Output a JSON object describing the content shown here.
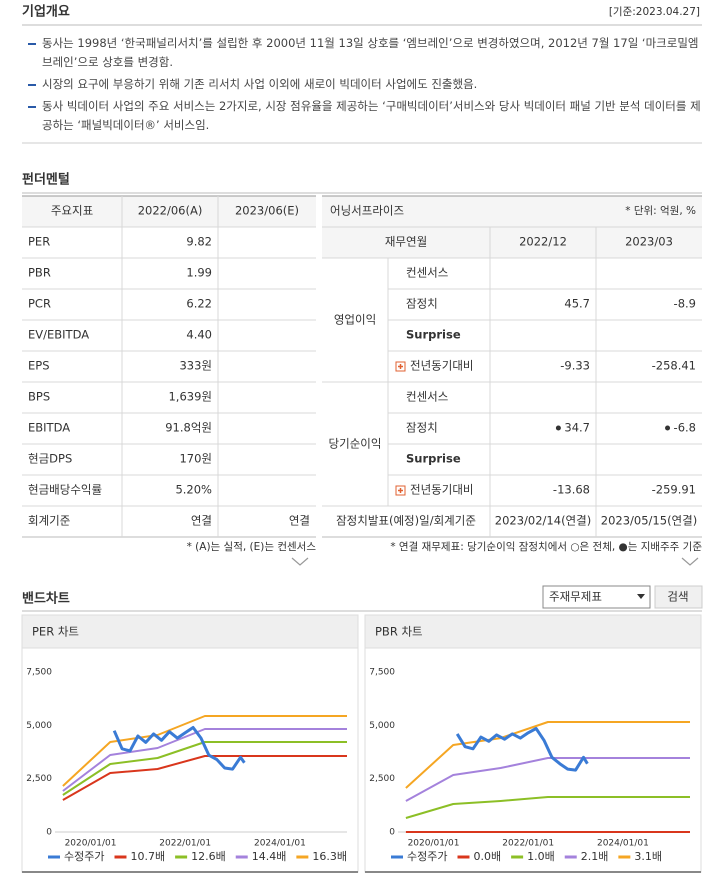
{
  "header": {
    "title": "기업개요",
    "date": "[기준:2023.04.27]"
  },
  "overview": [
    "동사는 1998년 ‘한국패널리서치’를 설립한 후 2000년 11월 13일 상호를 ‘엠브레인’으로 변경하였으며, 2012년 7월 17일 ‘마크로밀엠브레인’으로 상호를 변경함.",
    "시장의 요구에 부응하기 위해 기존 리서치 사업 이외에 새로이 빅데이터 사업에도 진출했음.",
    "동사 빅데이터 사업의 주요 서비스는 2가지로, 시장 점유율을 제공하는 ‘구매빅데이터’서비스와 당사 빅데이터 패널 기반 분석 데이터를 제공하는 ‘패널빅데이터®’ 서비스임."
  ],
  "fundamental": {
    "title": "펀더멘털",
    "indicators": {
      "headers": [
        "주요지표",
        "2022/06(A)",
        "2023/06(E)"
      ],
      "rows": [
        [
          "PER",
          "9.82",
          null
        ],
        [
          "PBR",
          "1.99",
          null
        ],
        [
          "PCR",
          "6.22",
          null
        ],
        [
          "EV/EBITDA",
          "4.40",
          null
        ],
        [
          "EPS",
          "333원",
          null
        ],
        [
          "BPS",
          "1,639원",
          null
        ],
        [
          "EBITDA",
          "91.8억원",
          null
        ],
        [
          "현금DPS",
          "170원",
          null
        ],
        [
          "현금배당수익률",
          "5.20%",
          null
        ],
        [
          "회계기준",
          "연결",
          "연결"
        ]
      ]
    },
    "earnings": {
      "title": "어닝서프라이즈",
      "unit": "* 단위: 억원, %",
      "headers": [
        "재무연월",
        "2022/12",
        "2023/03"
      ],
      "groups": [
        {
          "name": "영업이익",
          "rows": [
            [
              "컨센서스",
              null,
              null
            ],
            [
              "잠정치",
              "45.7",
              "-8.9"
            ],
            [
              "Surprise",
              null,
              null
            ],
            [
              "전년동기대비",
              "-9.33",
              "-258.41"
            ]
          ]
        },
        {
          "name": "당기순이익",
          "rows": [
            [
              "컨센서스",
              null,
              null
            ],
            [
              "잠정치",
              "34.7",
              "-6.8"
            ],
            [
              "Surprise",
              null,
              null
            ],
            [
              "전년동기대비",
              "-13.68",
              "-259.91"
            ]
          ]
        }
      ],
      "footer": [
        "잠정치발표(예정)일/회계기준",
        "2023/02/14(연결)",
        "2023/05/15(연결)"
      ]
    },
    "notes": [
      "* (A)는 실적, (E)는 컨센서스",
      "* 연결 재무제표: 당기순이익 잠정치에서 ○은 전체, ●는 지배주주 기준"
    ]
  },
  "band": {
    "title": "밴드차트",
    "select": "주재무제표",
    "button": "검색",
    "charts": [
      {
        "type": "line",
        "title": "PER 차트",
        "xlim": [
          "2019/04/01",
          "2025/06/01"
        ],
        "xticks": [
          "2020/01/01",
          "2022/01/01",
          "2024/01/01"
        ],
        "ylim": [
          0,
          7500
        ],
        "yticks": [
          0,
          {
            "value": 2500,
            "label": "2,500"
          },
          {
            "value": 5000,
            "label": "5,000"
          },
          {
            "value": 7500,
            "label": "7,500"
          }
        ],
        "series": [
          {
            "name": "수정주가",
            "color": "#3a7bd5",
            "x": [
              "2020/07/01",
              "2020/09/01",
              "2020/11/01",
              "2021/01/01",
              "2021/03/01",
              "2021/05/01",
              "2021/07/01",
              "2021/09/01",
              "2021/11/01",
              "2022/01/01",
              "2022/03/01",
              "2022/05/01",
              "2022/07/01",
              "2022/09/01",
              "2022/11/01",
              "2023/01/01",
              "2023/03/01",
              "2023/04/01"
            ],
            "values": [
              4750,
              3900,
              3800,
              4500,
              4200,
              4600,
              4300,
              4700,
              4400,
              4650,
              4900,
              4400,
              3600,
              3400,
              3000,
              2950,
              3500,
              3250
            ]
          },
          {
            "name": "10.7배",
            "color": "#d9361c",
            "x": [
              "2019/06/01",
              "2020/06/01",
              "2021/06/01",
              "2022/06/01",
              "2025/06/01"
            ],
            "values": [
              1500,
              2766,
              2953,
              3563,
              3563
            ]
          },
          {
            "name": "12.6배",
            "color": "#8cbf26",
            "x": [
              "2019/06/01",
              "2020/06/01",
              "2021/06/01",
              "2022/06/01",
              "2025/06/01"
            ],
            "values": [
              1735,
              3188,
              3469,
              4219,
              4219
            ]
          },
          {
            "name": "14.4배",
            "color": "#a482dc",
            "x": [
              "2019/06/01",
              "2020/06/01",
              "2021/06/01",
              "2022/06/01",
              "2025/06/01"
            ],
            "values": [
              1920,
              3610,
              3938,
              4828,
              4828
            ]
          },
          {
            "name": "16.3배",
            "color": "#f5a623",
            "x": [
              "2019/06/01",
              "2020/06/01",
              "2021/06/01",
              "2022/06/01",
              "2025/06/01"
            ],
            "values": [
              2156,
              4219,
              4547,
              5437,
              5437
            ]
          }
        ]
      },
      {
        "type": "line",
        "title": "PBR 차트",
        "xlim": [
          "2019/04/01",
          "2025/06/01"
        ],
        "xticks": [
          "2020/01/01",
          "2022/01/01",
          "2024/01/01"
        ],
        "ylim": [
          0,
          7500
        ],
        "yticks": [
          0,
          {
            "value": 2500,
            "label": "2,500"
          },
          {
            "value": 5000,
            "label": "5,000"
          },
          {
            "value": 7500,
            "label": "7,500"
          }
        ],
        "series": [
          {
            "name": "수정주가",
            "color": "#3a7bd5",
            "x": [
              "2020/07/01",
              "2020/09/01",
              "2020/11/01",
              "2021/01/01",
              "2021/03/01",
              "2021/05/01",
              "2021/07/01",
              "2021/09/01",
              "2021/11/01",
              "2022/01/01",
              "2022/03/01",
              "2022/05/01",
              "2022/07/01",
              "2022/09/01",
              "2022/11/01",
              "2023/01/01",
              "2023/03/01",
              "2023/04/01"
            ],
            "values": [
              4600,
              4000,
              3900,
              4450,
              4250,
              4550,
              4350,
              4600,
              4400,
              4650,
              4850,
              4300,
              3500,
              3200,
              2950,
              2900,
              3500,
              3200
            ]
          },
          {
            "name": "0.0배",
            "color": "#d9361c",
            "x": [
              "2019/06/01",
              "2020/06/01",
              "2021/06/01",
              "2022/06/01",
              "2025/06/01"
            ],
            "values": [
              0,
              0,
              0,
              0,
              0
            ]
          },
          {
            "name": "1.0배",
            "color": "#8cbf26",
            "x": [
              "2019/06/01",
              "2020/06/01",
              "2021/06/01",
              "2022/06/01",
              "2025/06/01"
            ],
            "values": [
              656,
              1313,
              1453,
              1640,
              1640
            ]
          },
          {
            "name": "2.1배",
            "color": "#a482dc",
            "x": [
              "2019/06/01",
              "2020/06/01",
              "2021/06/01",
              "2022/06/01",
              "2025/06/01"
            ],
            "values": [
              1453,
              2672,
              3000,
              3470,
              3470
            ]
          },
          {
            "name": "3.1배",
            "color": "#f5a623",
            "x": [
              "2019/06/01",
              "2020/06/01",
              "2021/06/01",
              "2022/06/01",
              "2025/06/01"
            ],
            "values": [
              2063,
              4078,
              4400,
              5156,
              5156
            ]
          }
        ]
      }
    ]
  }
}
